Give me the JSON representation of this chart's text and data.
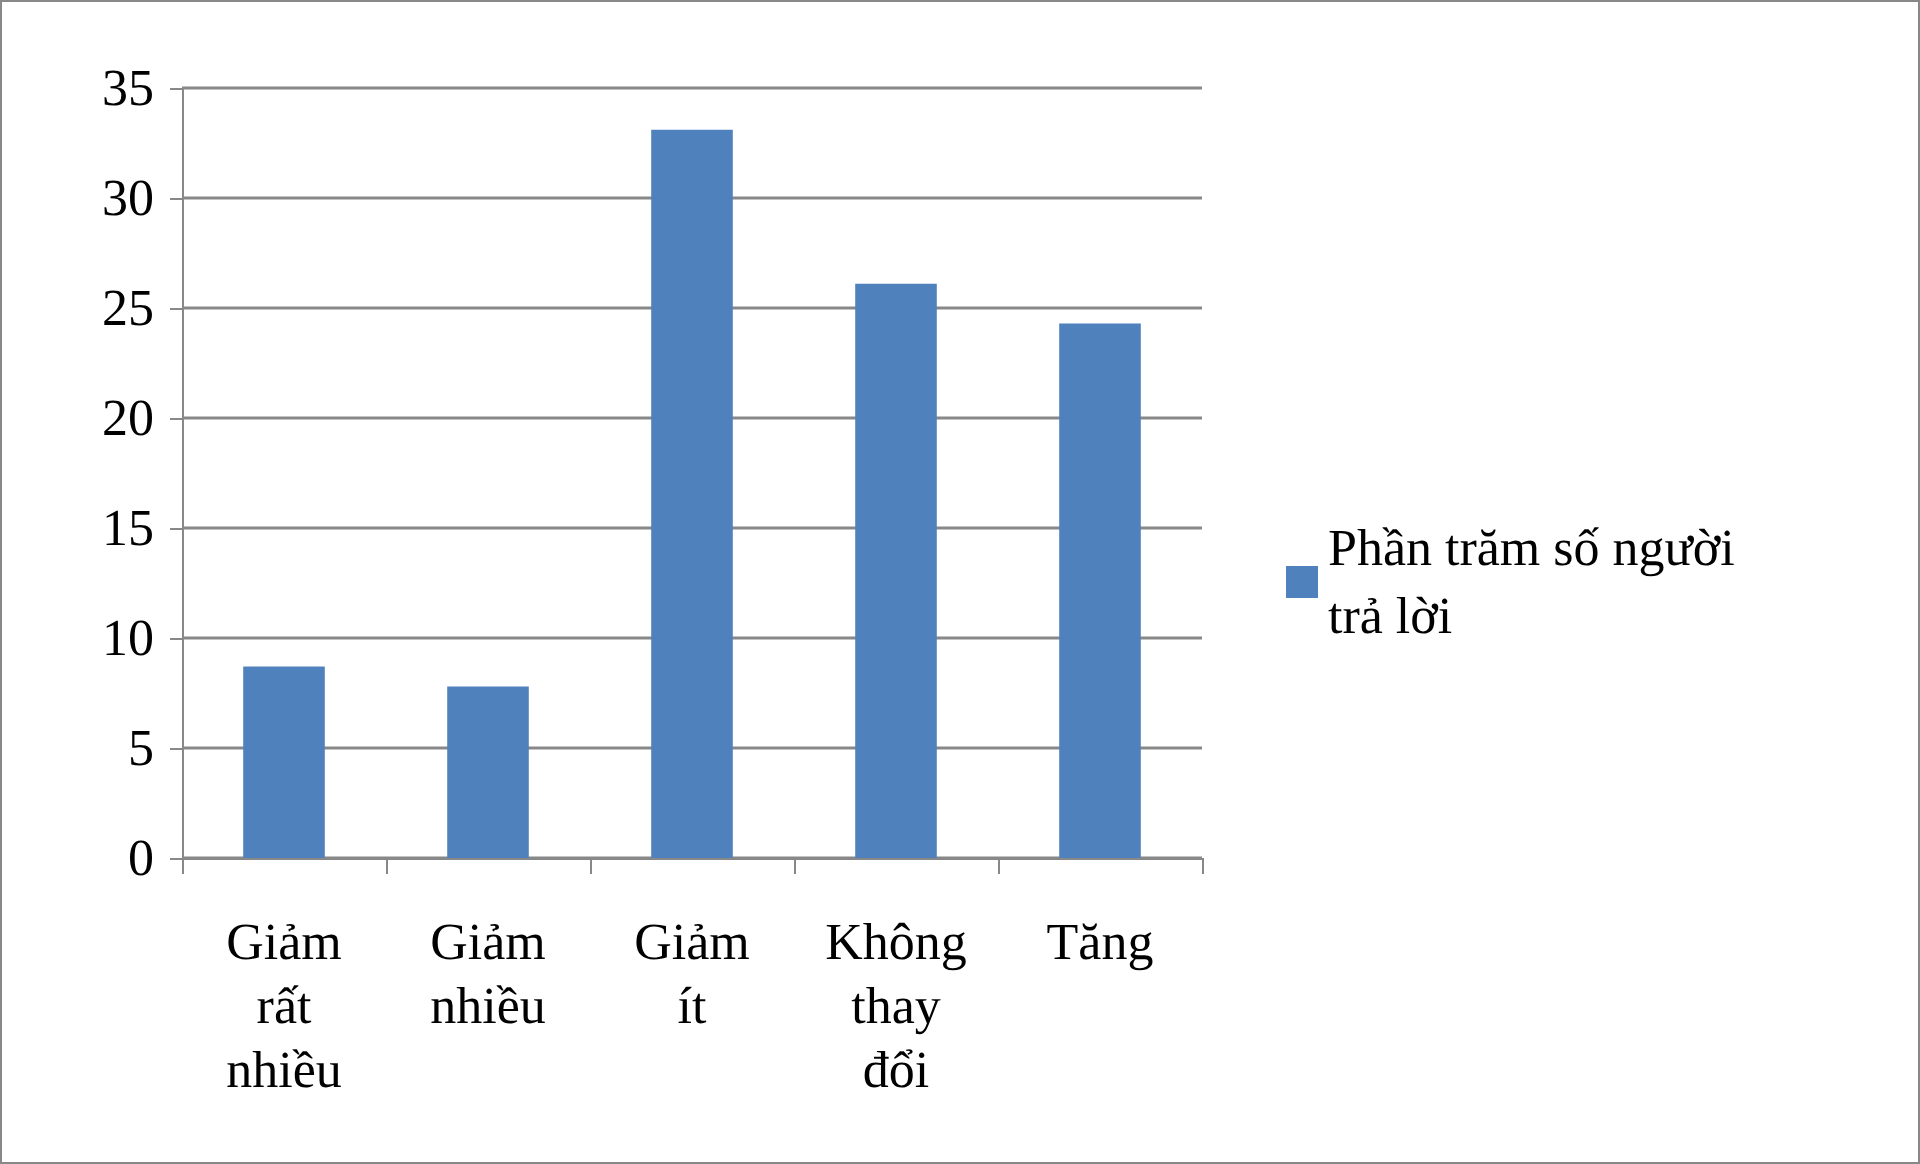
{
  "chart_data": {
    "type": "bar",
    "categories": [
      "Giảm rất nhiều",
      "Giảm nhiều",
      "Giảm ít",
      "Không thay đổi",
      "Tăng"
    ],
    "series": [
      {
        "name": "Phần trăm số người trả lời",
        "color": "#4f81bd",
        "values": [
          8.7,
          7.8,
          33.1,
          26.1,
          24.3
        ]
      }
    ],
    "ylim": [
      0,
      35
    ],
    "yticks": [
      0,
      5,
      10,
      15,
      20,
      25,
      30,
      35
    ],
    "grid": "y",
    "legend": "right"
  }
}
